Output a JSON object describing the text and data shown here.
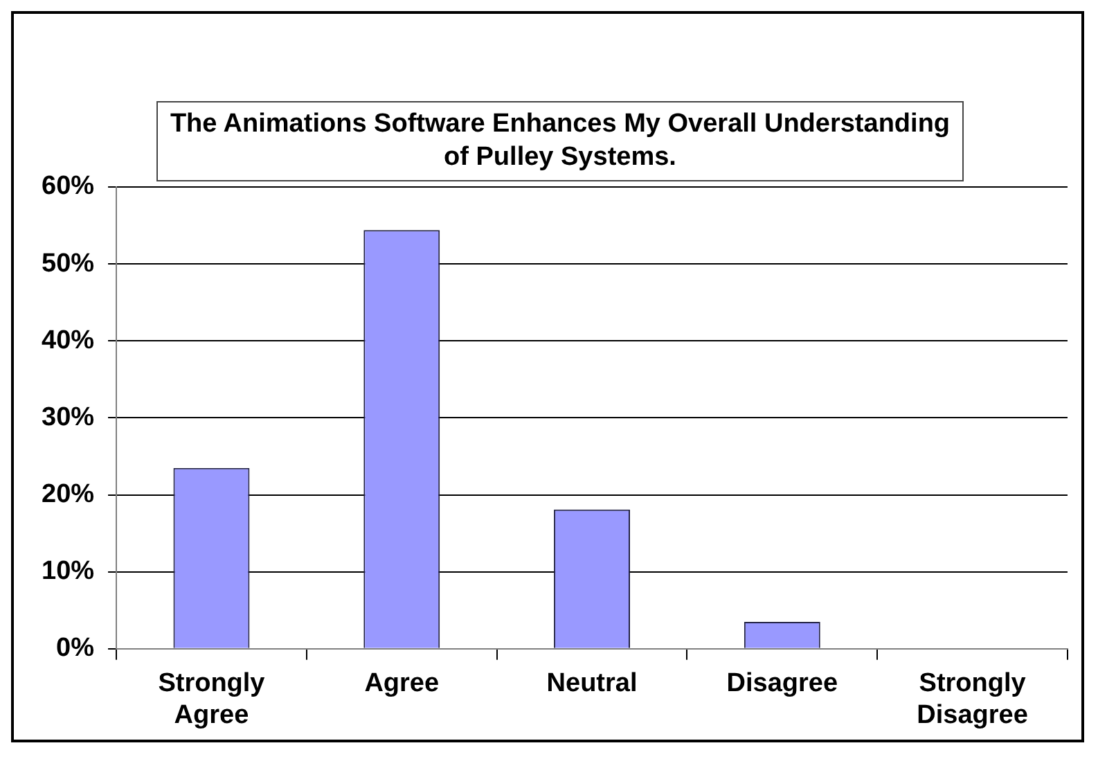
{
  "chart_data": {
    "type": "bar",
    "title": "The Animations Software Enhances My Overall Understanding of Pulley Systems.",
    "categories": [
      "Strongly Agree",
      "Agree",
      "Neutral",
      "Disagree",
      "Strongly Disagree"
    ],
    "values": [
      23.5,
      54.4,
      18.1,
      3.5,
      0
    ],
    "color": "#9999ff",
    "ylim": [
      0,
      60
    ],
    "yticks": [
      {
        "value": 0,
        "label": "0%"
      },
      {
        "value": 10,
        "label": "10%"
      },
      {
        "value": 20,
        "label": "20%"
      },
      {
        "value": 30,
        "label": "30%"
      },
      {
        "value": 40,
        "label": "40%"
      },
      {
        "value": 50,
        "label": "50%"
      },
      {
        "value": 60,
        "label": "60%"
      }
    ],
    "grid": "y",
    "legend": false
  }
}
